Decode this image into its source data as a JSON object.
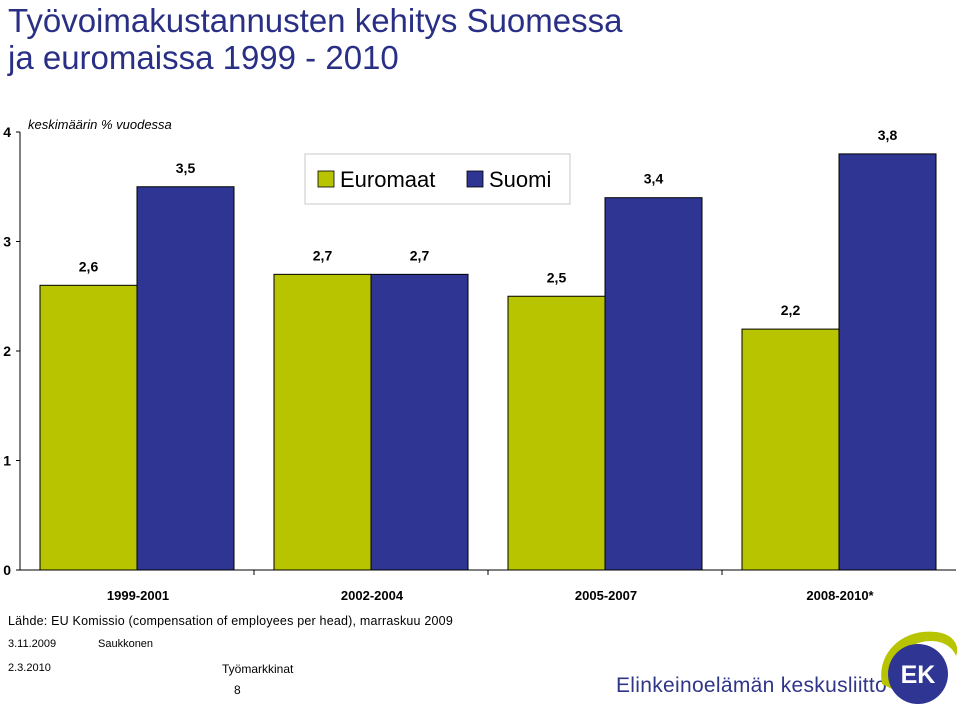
{
  "title": {
    "line1": "Työvoimakustannusten kehitys Suomessa",
    "line2": "ja euromaissa 1999 - 2010"
  },
  "colors": {
    "title": "#2a2f86",
    "euromaat": "#b9c400",
    "suomi": "#2e3592"
  },
  "chart_data": {
    "type": "bar",
    "subtitle": "keskimäärin % vuodessa",
    "categories": [
      "1999-2001",
      "2002-2004",
      "2005-2007",
      "2008-2010*"
    ],
    "series": [
      {
        "name": "Euromaat",
        "values": [
          2.6,
          2.7,
          2.5,
          2.2
        ],
        "labels": [
          "2,6",
          "2,7",
          "2,5",
          "2,2"
        ]
      },
      {
        "name": "Suomi",
        "values": [
          3.5,
          2.7,
          3.4,
          3.8
        ],
        "labels": [
          "3,5",
          "2,7",
          "3,4",
          "3,8"
        ]
      }
    ],
    "ylim": [
      0,
      4
    ],
    "yticks": [
      0,
      1,
      2,
      3,
      4
    ],
    "ytick_labels": [
      "0",
      "1",
      "2",
      "3",
      "4"
    ],
    "xlabel": "",
    "ylabel": "",
    "grid": false,
    "legend": "top-center"
  },
  "footer": {
    "source": "Lähde: EU Komissio (compensation of employees per head), marraskuu 2009",
    "date1": "3.11.2009",
    "author": "Saukkonen",
    "date2": "2.3.2010",
    "department": "Työmarkkinat",
    "page": "8"
  },
  "brand": {
    "name": "Elinkeinoelämän keskusliitto",
    "logo_text": "EK"
  }
}
